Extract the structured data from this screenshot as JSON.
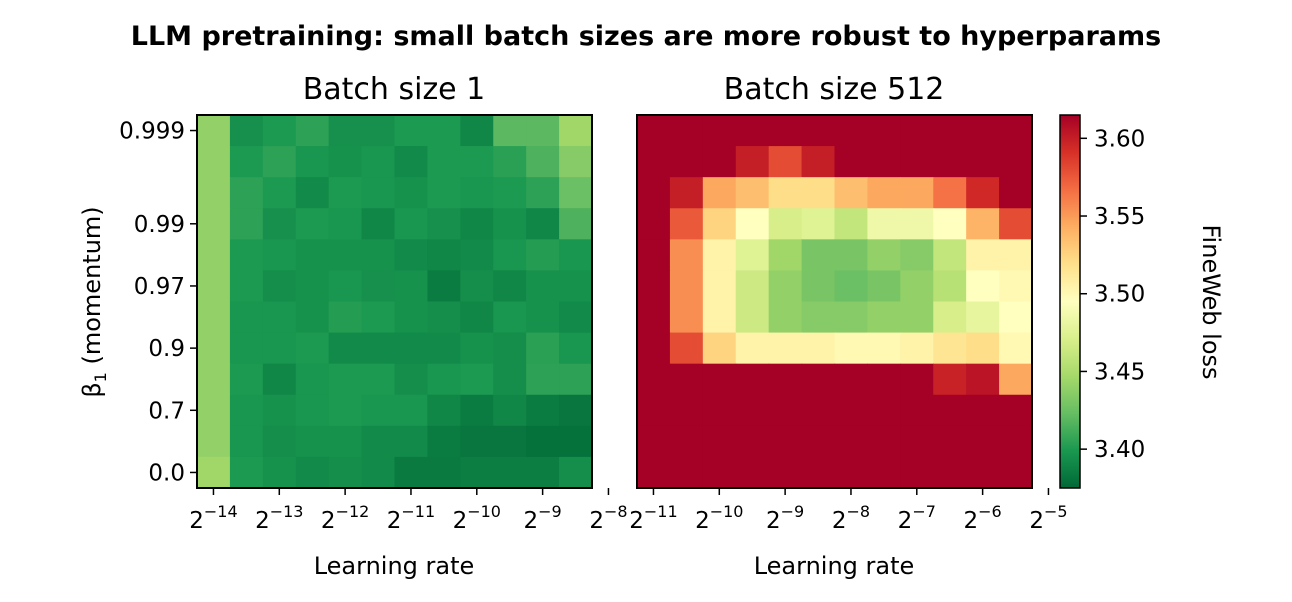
{
  "chart_data": {
    "type": "heatmap",
    "title": "LLM pretraining: small batch sizes are more robust to hyperparams",
    "panels": [
      {
        "title": "Batch size 1",
        "xlabel": "Learning rate",
        "ylabel_base": "β",
        "ylabel_sub": "1",
        "ylabel_rest": " (momentum)",
        "x_tick_exponents": [
          "−14",
          "−13",
          "−12",
          "−11",
          "−10",
          "−9",
          "−8"
        ],
        "x_tick_base": "2",
        "y_tick_labels": [
          "0.0",
          "0.7",
          "0.9",
          "0.97",
          "0.99",
          "0.999"
        ],
        "y_tick_rows": [
          0,
          2,
          4,
          6,
          8,
          11
        ],
        "grid": [
          [
            3.44,
            3.395,
            3.4,
            3.405,
            3.395,
            3.395,
            3.4,
            3.4,
            3.39,
            3.42,
            3.42,
            3.445
          ],
          [
            3.44,
            3.4,
            3.405,
            3.398,
            3.396,
            3.398,
            3.392,
            3.4,
            3.4,
            3.404,
            3.415,
            3.435
          ],
          [
            3.44,
            3.405,
            3.4,
            3.392,
            3.4,
            3.398,
            3.396,
            3.4,
            3.398,
            3.4,
            3.405,
            3.425
          ],
          [
            3.44,
            3.405,
            3.395,
            3.4,
            3.398,
            3.39,
            3.398,
            3.395,
            3.39,
            3.396,
            3.39,
            3.415
          ],
          [
            3.44,
            3.4,
            3.398,
            3.396,
            3.396,
            3.396,
            3.392,
            3.39,
            3.392,
            3.398,
            3.402,
            3.398
          ],
          [
            3.44,
            3.4,
            3.394,
            3.396,
            3.398,
            3.395,
            3.396,
            3.385,
            3.394,
            3.39,
            3.396,
            3.396
          ],
          [
            3.44,
            3.398,
            3.398,
            3.396,
            3.402,
            3.4,
            3.396,
            3.394,
            3.39,
            3.398,
            3.396,
            3.392
          ],
          [
            3.44,
            3.398,
            3.398,
            3.4,
            3.392,
            3.392,
            3.392,
            3.392,
            3.396,
            3.394,
            3.404,
            3.398
          ],
          [
            3.44,
            3.4,
            3.39,
            3.398,
            3.4,
            3.4,
            3.394,
            3.398,
            3.4,
            3.394,
            3.405,
            3.405
          ],
          [
            3.44,
            3.398,
            3.396,
            3.398,
            3.4,
            3.398,
            3.398,
            3.39,
            3.385,
            3.39,
            3.385,
            3.382
          ],
          [
            3.44,
            3.398,
            3.394,
            3.396,
            3.396,
            3.392,
            3.392,
            3.385,
            3.382,
            3.382,
            3.38,
            3.38
          ],
          [
            3.445,
            3.4,
            3.396,
            3.392,
            3.394,
            3.392,
            3.384,
            3.384,
            3.386,
            3.386,
            3.386,
            3.394
          ]
        ]
      },
      {
        "title": "Batch size 512",
        "xlabel": "Learning rate",
        "x_tick_exponents": [
          "−11",
          "−10",
          "−9",
          "−8",
          "−7",
          "−6",
          "−5"
        ],
        "x_tick_base": "2",
        "grid": [
          [
            3.62,
            3.62,
            3.62,
            3.62,
            3.62,
            3.62,
            3.62,
            3.62,
            3.62,
            3.62,
            3.62,
            3.62
          ],
          [
            3.62,
            3.62,
            3.62,
            3.6,
            3.58,
            3.6,
            3.62,
            3.62,
            3.62,
            3.62,
            3.62,
            3.62
          ],
          [
            3.62,
            3.6,
            3.545,
            3.535,
            3.52,
            3.52,
            3.535,
            3.545,
            3.545,
            3.565,
            3.595,
            3.62
          ],
          [
            3.62,
            3.575,
            3.525,
            3.495,
            3.47,
            3.475,
            3.46,
            3.485,
            3.485,
            3.495,
            3.54,
            3.58
          ],
          [
            3.62,
            3.555,
            3.505,
            3.475,
            3.445,
            3.43,
            3.43,
            3.44,
            3.435,
            3.46,
            3.505,
            3.505
          ],
          [
            3.62,
            3.555,
            3.505,
            3.465,
            3.44,
            3.43,
            3.425,
            3.43,
            3.44,
            3.455,
            3.495,
            3.5
          ],
          [
            3.62,
            3.555,
            3.505,
            3.465,
            3.44,
            3.435,
            3.435,
            3.44,
            3.44,
            3.47,
            3.48,
            3.495
          ],
          [
            3.62,
            3.58,
            3.525,
            3.505,
            3.505,
            3.505,
            3.5,
            3.5,
            3.505,
            3.515,
            3.52,
            3.5
          ],
          [
            3.62,
            3.62,
            3.62,
            3.62,
            3.62,
            3.62,
            3.62,
            3.62,
            3.62,
            3.598,
            3.605,
            3.545
          ],
          [
            3.62,
            3.62,
            3.62,
            3.62,
            3.62,
            3.62,
            3.62,
            3.62,
            3.62,
            3.62,
            3.62,
            3.62
          ],
          [
            3.62,
            3.62,
            3.62,
            3.62,
            3.62,
            3.62,
            3.62,
            3.62,
            3.62,
            3.62,
            3.62,
            3.62
          ],
          [
            3.62,
            3.62,
            3.62,
            3.62,
            3.62,
            3.62,
            3.62,
            3.62,
            3.62,
            3.62,
            3.62,
            3.62
          ]
        ]
      }
    ],
    "colorbar": {
      "label": "FineWeb loss",
      "range": [
        3.375,
        3.615
      ],
      "ticks": [
        "3.40",
        "3.45",
        "3.50",
        "3.55",
        "3.60"
      ],
      "tick_values": [
        3.4,
        3.45,
        3.5,
        3.55,
        3.6
      ],
      "colormap": "RdYlGn_r"
    },
    "grid_lines": false
  }
}
